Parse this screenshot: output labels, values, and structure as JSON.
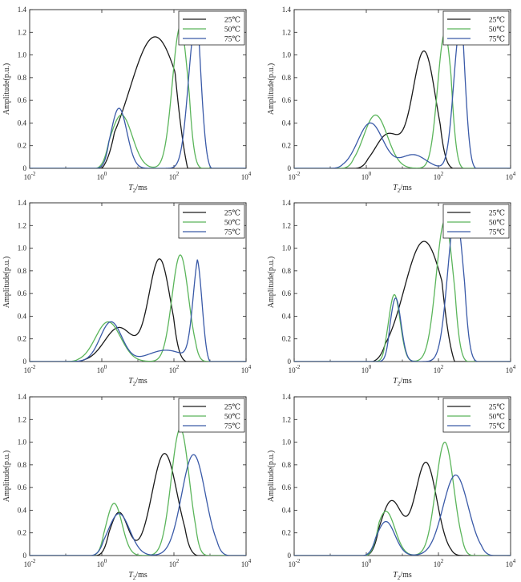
{
  "chart_data": [
    {
      "type": "line",
      "xscale": "log",
      "xlim": [
        0.01,
        10000
      ],
      "ylim": [
        0,
        1.4
      ],
      "xlabel_main": "T",
      "xlabel_sub": "2",
      "xlabel_unit": "/ms",
      "ylabel": "Amplitude(p.u.)",
      "legend_position": "top-right",
      "series": [
        {
          "name": "25℃",
          "color": "#1a1a1a",
          "peaks": [
            {
              "center": 30,
              "amp": 1.16,
              "width": 0.7
            }
          ],
          "range": [
            1.0,
            240
          ]
        },
        {
          "name": "50℃",
          "color": "#5bb55b",
          "peaks": [
            {
              "center": 3.5,
              "amp": 0.47,
              "width": 0.3
            },
            {
              "center": 150,
              "amp": 1.25,
              "width": 0.22
            }
          ],
          "range": [
            0.7,
            600
          ]
        },
        {
          "name": "75℃",
          "color": "#3a5aa8",
          "peaks": [
            {
              "center": 3.0,
              "amp": 0.53,
              "width": 0.22
            },
            {
              "center": 400,
              "amp": 1.28,
              "width": 0.2
            }
          ],
          "range": [
            0.7,
            1100
          ]
        }
      ]
    },
    {
      "type": "line",
      "xscale": "log",
      "xlim": [
        0.01,
        10000
      ],
      "ylim": [
        0,
        1.4
      ],
      "xlabel_main": "T",
      "xlabel_sub": "2",
      "xlabel_unit": "/ms",
      "ylabel": "Amplitude(p.u.)",
      "legend_position": "top-right",
      "series": [
        {
          "name": "25℃",
          "color": "#1a1a1a",
          "peaks": [
            {
              "center": 4,
              "amp": 0.3,
              "width": 0.35
            },
            {
              "center": 40,
              "amp": 1.03,
              "width": 0.32
            }
          ],
          "range": [
            0.5,
            250
          ]
        },
        {
          "name": "50℃",
          "color": "#5bb55b",
          "peaks": [
            {
              "center": 1.8,
              "amp": 0.47,
              "width": 0.33
            },
            {
              "center": 150,
              "amp": 1.19,
              "width": 0.2
            }
          ],
          "range": [
            0.2,
            500
          ]
        },
        {
          "name": "75℃",
          "color": "#3a5aa8",
          "peaks": [
            {
              "center": 1.3,
              "amp": 0.4,
              "width": 0.35
            },
            {
              "center": 20,
              "amp": 0.12,
              "width": 0.35
            },
            {
              "center": 400,
              "amp": 1.24,
              "width": 0.18
            }
          ],
          "range": [
            0.1,
            1100
          ]
        }
      ]
    },
    {
      "type": "line",
      "xscale": "log",
      "xlim": [
        0.01,
        10000
      ],
      "ylim": [
        0,
        1.4
      ],
      "xlabel_main": "T",
      "xlabel_sub": "2",
      "xlabel_unit": "/ms",
      "ylabel": "Amplitude(p.u.)",
      "legend_position": "top-right",
      "series": [
        {
          "name": "25℃",
          "color": "#1a1a1a",
          "peaks": [
            {
              "center": 3,
              "amp": 0.3,
              "width": 0.4
            },
            {
              "center": 40,
              "amp": 0.9,
              "width": 0.3
            }
          ],
          "range": [
            0.15,
            220
          ]
        },
        {
          "name": "50℃",
          "color": "#5bb55b",
          "peaks": [
            {
              "center": 1.5,
              "amp": 0.35,
              "width": 0.35
            },
            {
              "center": 150,
              "amp": 0.94,
              "width": 0.23
            }
          ],
          "range": [
            0.1,
            900
          ]
        },
        {
          "name": "75℃",
          "color": "#3a5aa8",
          "peaks": [
            {
              "center": 1.8,
              "amp": 0.35,
              "width": 0.3
            },
            {
              "center": 60,
              "amp": 0.1,
              "width": 0.5
            },
            {
              "center": 500,
              "amp": 0.92,
              "width": 0.16
            }
          ],
          "range": [
            0.1,
            1000
          ]
        }
      ]
    },
    {
      "type": "line",
      "xscale": "log",
      "xlim": [
        0.01,
        10000
      ],
      "ylim": [
        0,
        1.4
      ],
      "xlabel_main": "T",
      "xlabel_sub": "2",
      "xlabel_unit": "/ms",
      "ylabel": "Amplitude(p.u.)",
      "legend_position": "top-right",
      "series": [
        {
          "name": "25℃",
          "color": "#1a1a1a",
          "peaks": [
            {
              "center": 40,
              "amp": 1.06,
              "width": 0.55
            }
          ],
          "range": [
            1.5,
            280
          ]
        },
        {
          "name": "50℃",
          "color": "#5bb55b",
          "peaks": [
            {
              "center": 6,
              "amp": 0.59,
              "width": 0.16
            },
            {
              "center": 150,
              "amp": 1.24,
              "width": 0.24
            }
          ],
          "range": [
            1.5,
            650
          ]
        },
        {
          "name": "75℃",
          "color": "#3a5aa8",
          "peaks": [
            {
              "center": 6.5,
              "amp": 0.56,
              "width": 0.15
            },
            {
              "center": 300,
              "amp": 1.31,
              "width": 0.22
            }
          ],
          "range": [
            2,
            1200
          ]
        }
      ]
    },
    {
      "type": "line",
      "xscale": "log",
      "xlim": [
        0.01,
        10000
      ],
      "ylim": [
        0,
        1.4
      ],
      "xlabel_main": "T",
      "xlabel_sub": "2",
      "xlabel_unit": "/ms",
      "ylabel": "Amplitude(p.u.)",
      "legend_position": "top-right",
      "series": [
        {
          "name": "25℃",
          "color": "#1a1a1a",
          "peaks": [
            {
              "center": 3,
              "amp": 0.38,
              "width": 0.25
            },
            {
              "center": 55,
              "amp": 0.9,
              "width": 0.35
            }
          ],
          "range": [
            0.7,
            450
          ]
        },
        {
          "name": "50℃",
          "color": "#5bb55b",
          "peaks": [
            {
              "center": 2.2,
              "amp": 0.46,
              "width": 0.22
            },
            {
              "center": 150,
              "amp": 1.12,
              "width": 0.25
            }
          ],
          "range": [
            0.5,
            900
          ]
        },
        {
          "name": "75℃",
          "color": "#3a5aa8",
          "peaks": [
            {
              "center": 3,
              "amp": 0.37,
              "width": 0.3
            },
            {
              "center": 350,
              "amp": 0.89,
              "width": 0.33
            }
          ],
          "range": [
            0.5,
            3500
          ]
        }
      ]
    },
    {
      "type": "line",
      "xscale": "log",
      "xlim": [
        0.01,
        10000
      ],
      "ylim": [
        0,
        1.4
      ],
      "xlabel_main": "T",
      "xlabel_sub": "2",
      "xlabel_unit": "/ms",
      "ylabel": "Amplitude(p.u.)",
      "legend_position": "top-right",
      "series": [
        {
          "name": "25℃",
          "color": "#1a1a1a",
          "peaks": [
            {
              "center": 5,
              "amp": 0.48,
              "width": 0.3
            },
            {
              "center": 45,
              "amp": 0.82,
              "width": 0.3
            }
          ],
          "range": [
            1,
            500
          ]
        },
        {
          "name": "50℃",
          "color": "#5bb55b",
          "peaks": [
            {
              "center": 3.5,
              "amp": 0.39,
              "width": 0.25
            },
            {
              "center": 150,
              "amp": 1.0,
              "width": 0.25
            }
          ],
          "range": [
            1,
            1000
          ]
        },
        {
          "name": "75℃",
          "color": "#3a5aa8",
          "peaks": [
            {
              "center": 3.5,
              "amp": 0.3,
              "width": 0.25
            },
            {
              "center": 300,
              "amp": 0.71,
              "width": 0.35
            }
          ],
          "range": [
            0.8,
            3500
          ]
        }
      ]
    }
  ],
  "xticks": [
    {
      "base": "10",
      "exp": "-2",
      "value": 0.01
    },
    {
      "base": "10",
      "exp": "0",
      "value": 1
    },
    {
      "base": "10",
      "exp": "2",
      "value": 100
    },
    {
      "base": "10",
      "exp": "4",
      "value": 10000
    }
  ],
  "yticks": [
    "0",
    "0.2",
    "0.4",
    "0.6",
    "0.8",
    "1.0",
    "1.2",
    "1.4"
  ],
  "ytick_values": [
    0,
    0.2,
    0.4,
    0.6,
    0.8,
    1.0,
    1.2,
    1.4
  ]
}
